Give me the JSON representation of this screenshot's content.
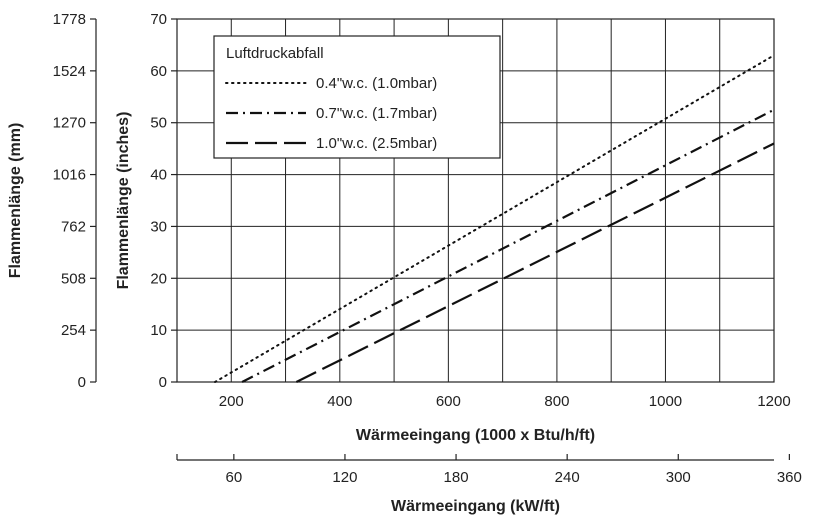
{
  "chart_data": {
    "type": "line",
    "x": [
      200,
      400,
      600,
      800,
      1000,
      1200
    ],
    "xlim": [
      100,
      1200
    ],
    "ylim": [
      0,
      70
    ],
    "xlabel": "Wärmeeingang (1000 x Btu/h/ft)",
    "ylabel": "Flammenlänge (inches)",
    "x_ticks": [
      "200",
      "400",
      "600",
      "800",
      "1000",
      "1200"
    ],
    "y_ticks": [
      "0",
      "10",
      "20",
      "30",
      "40",
      "50",
      "60",
      "70"
    ],
    "secondary_y": {
      "label": "Flammenlänge (mm)",
      "ticks": [
        "0",
        "254",
        "508",
        "762",
        "1016",
        "1270",
        "1524",
        "1778"
      ]
    },
    "secondary_x": {
      "label": "Wärmeeingang (kW/ft)",
      "ticks": [
        "60",
        "120",
        "180",
        "240",
        "300",
        "360"
      ],
      "tick_values": [
        60,
        120,
        180,
        240,
        300,
        360
      ],
      "range": [
        29.3,
        351.7
      ]
    },
    "grid": true,
    "legend": {
      "title": "Luftdruckabfall",
      "placement": "top-left"
    },
    "series": [
      {
        "name": "0.4\"w.c. (1.0mbar)",
        "style": "dotted",
        "x": [
          170,
          1200
        ],
        "y": [
          0,
          63
        ]
      },
      {
        "name": "0.7\"w.c. (1.7mbar)",
        "style": "dash-dot",
        "x": [
          220,
          1200
        ],
        "y": [
          0,
          52.5
        ]
      },
      {
        "name": "1.0\"w.c. (2.5mbar)",
        "style": "long-dash",
        "x": [
          320,
          1200
        ],
        "y": [
          0,
          46
        ]
      }
    ]
  }
}
